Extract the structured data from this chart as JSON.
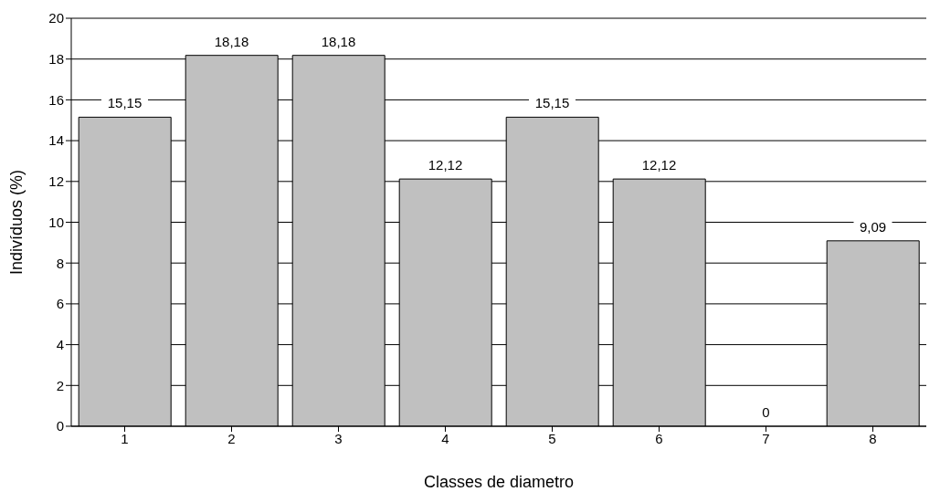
{
  "chart_data": {
    "type": "bar",
    "xlabel": "Classes de diametro",
    "ylabel": "Indivíduos (%)",
    "categories": [
      "1",
      "2",
      "3",
      "4",
      "5",
      "6",
      "7",
      "8"
    ],
    "values": [
      15.15,
      18.18,
      18.18,
      12.12,
      15.15,
      12.12,
      0,
      9.09
    ],
    "value_labels": [
      "15,15",
      "18,18",
      "18,18",
      "12,12",
      "15,15",
      "12,12",
      "0",
      "9,09"
    ],
    "color": "#c0c0c0",
    "ylim": [
      0,
      20
    ],
    "yticks": [
      0,
      2,
      4,
      6,
      8,
      10,
      12,
      14,
      16,
      18,
      20
    ],
    "grid": "y",
    "legend": false
  }
}
